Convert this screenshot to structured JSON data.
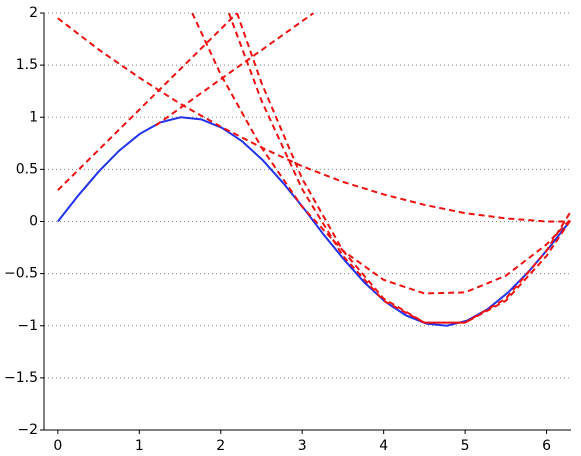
{
  "chart_data": {
    "type": "line",
    "xlim": [
      -0.17,
      6.3
    ],
    "ylim": [
      -2,
      2
    ],
    "xticks": [
      0,
      1,
      2,
      3,
      4,
      5,
      6
    ],
    "yticks": [
      {
        "value": -2,
        "label": "−2"
      },
      {
        "value": -1.5,
        "label": "−1.5"
      },
      {
        "value": -1,
        "label": "−1"
      },
      {
        "value": -0.5,
        "label": "−0.5"
      },
      0,
      0.5,
      1,
      1.5,
      2
    ],
    "grid": true,
    "series": [
      {
        "color": "#2233ee",
        "style": "solid",
        "x": [
          0,
          0.2513,
          0.5027,
          0.754,
          1.005,
          1.257,
          1.508,
          1.759,
          2.011,
          2.262,
          2.513,
          2.765,
          3.016,
          3.267,
          3.519,
          3.77,
          4.021,
          4.273,
          4.524,
          4.775,
          5.027,
          5.278,
          5.529,
          5.781,
          6.032,
          6.283
        ],
        "values": [
          0,
          0.25,
          0.48,
          0.68,
          0.84,
          0.95,
          1.0,
          0.98,
          0.9,
          0.77,
          0.59,
          0.37,
          0.13,
          -0.13,
          -0.37,
          -0.59,
          -0.77,
          -0.9,
          -0.98,
          -1.0,
          -0.95,
          -0.84,
          -0.68,
          -0.48,
          -0.25,
          0
        ]
      },
      {
        "color": "#ee1111",
        "style": "dashed",
        "x": [
          0,
          2.2
        ],
        "values": [
          0.3,
          2.0
        ]
      },
      {
        "color": "#ee1111",
        "style": "dashed",
        "x": [
          1.2,
          3.14
        ],
        "values": [
          0.92,
          2.0
        ]
      },
      {
        "color": "#ee1111",
        "style": "dashed",
        "x": [
          0,
          0.5,
          1,
          1.5,
          2,
          2.5,
          3,
          3.5,
          4,
          4.5,
          5,
          5.5,
          6,
          6.28
        ],
        "values": [
          1.95,
          1.65,
          1.38,
          1.13,
          0.91,
          0.71,
          0.53,
          0.38,
          0.26,
          0.16,
          0.08,
          0.03,
          0.0,
          0
        ]
      },
      {
        "color": "#ee1111",
        "style": "dashed",
        "x": [
          1.65,
          2,
          2.5,
          3,
          3.5,
          4,
          4.5,
          5,
          5.5,
          6,
          6.28
        ],
        "values": [
          2.0,
          1.41,
          0.71,
          0.14,
          -0.28,
          -0.56,
          -0.69,
          -0.68,
          -0.52,
          -0.22,
          0.01
        ]
      },
      {
        "color": "#ee1111",
        "style": "dashed",
        "x": [
          2.1,
          2.5,
          3,
          3.5,
          4,
          4.5,
          5,
          5.5,
          6,
          6.3
        ],
        "values": [
          2.0,
          1.16,
          0.31,
          -0.33,
          -0.76,
          -0.97,
          -0.97,
          -0.76,
          -0.33,
          0.02
        ]
      },
      {
        "color": "#ee1111",
        "style": "dashed",
        "x": [
          2.2,
          2.5,
          3,
          3.5,
          4,
          4.5,
          5,
          5.5,
          6,
          6.3
        ],
        "values": [
          2.0,
          1.33,
          0.41,
          -0.28,
          -0.74,
          -0.97,
          -0.97,
          -0.74,
          -0.28,
          0.1
        ]
      }
    ]
  }
}
